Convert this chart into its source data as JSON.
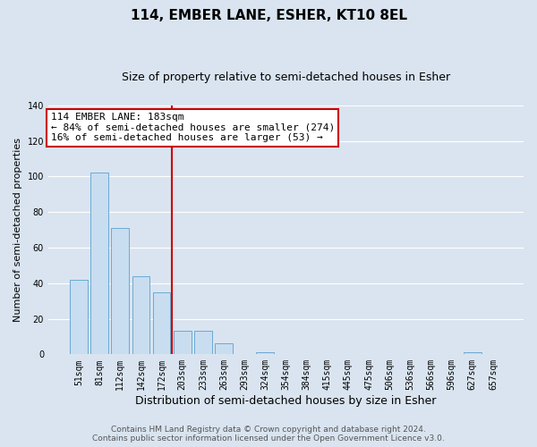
{
  "title": "114, EMBER LANE, ESHER, KT10 8EL",
  "subtitle": "Size of property relative to semi-detached houses in Esher",
  "xlabel": "Distribution of semi-detached houses by size in Esher",
  "ylabel": "Number of semi-detached properties",
  "footer_line1": "Contains HM Land Registry data © Crown copyright and database right 2024.",
  "footer_line2": "Contains public sector information licensed under the Open Government Licence v3.0.",
  "categories": [
    "51sqm",
    "81sqm",
    "112sqm",
    "142sqm",
    "172sqm",
    "203sqm",
    "233sqm",
    "263sqm",
    "293sqm",
    "324sqm",
    "354sqm",
    "384sqm",
    "415sqm",
    "445sqm",
    "475sqm",
    "506sqm",
    "536sqm",
    "566sqm",
    "596sqm",
    "627sqm",
    "657sqm"
  ],
  "values": [
    42,
    102,
    71,
    44,
    35,
    13,
    13,
    6,
    0,
    1,
    0,
    0,
    0,
    0,
    0,
    0,
    0,
    0,
    0,
    1,
    0
  ],
  "bar_color": "#c9ddf0",
  "bar_edge_color": "#6aaad4",
  "background_color": "#d9e4f0",
  "plot_bg_color": "#d9e4f0",
  "grid_color": "#ffffff",
  "ann_line1": "114 EMBER LANE: 183sqm",
  "ann_line2": "← 84% of semi-detached houses are smaller (274)",
  "ann_line3": "16% of semi-detached houses are larger (53) →",
  "vline_color": "#cc0000",
  "vline_x": 4.5,
  "ylim": [
    0,
    140
  ],
  "yticks": [
    0,
    20,
    40,
    60,
    80,
    100,
    120,
    140
  ],
  "title_fontsize": 11,
  "subtitle_fontsize": 9,
  "xlabel_fontsize": 9,
  "ylabel_fontsize": 8,
  "tick_fontsize": 7,
  "ann_fontsize": 8,
  "footer_fontsize": 6.5
}
